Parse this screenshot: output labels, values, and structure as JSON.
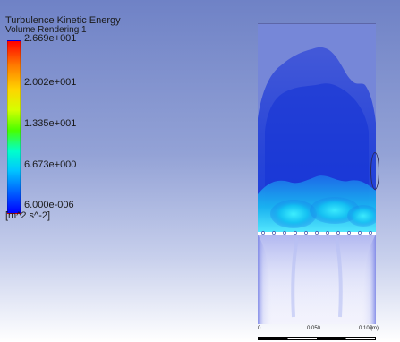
{
  "legend": {
    "title": "Turbulence Kinetic Energy",
    "subtitle": "Volume Rendering 1",
    "ticks": [
      "2.669e+001",
      "2.002e+001",
      "1.335e+001",
      "6.673e+000",
      "6.000e-006"
    ],
    "unit": "[m^2 s^-2]",
    "colormap": [
      "#ff0000",
      "#ff7a00",
      "#ffd400",
      "#d5ff00",
      "#48ff00",
      "#00ffcc",
      "#00c7ff",
      "#0060ff",
      "#0000ff"
    ]
  },
  "scale": {
    "labels": [
      "0",
      "0.050",
      "0.100",
      "(m)"
    ]
  },
  "colors": {
    "background_top": "#6f82c6",
    "background_bottom": "#ffffff",
    "domain_upper": "#7687d8",
    "domain_lower": "#e6e8fb",
    "baffle": "#ffffff"
  }
}
